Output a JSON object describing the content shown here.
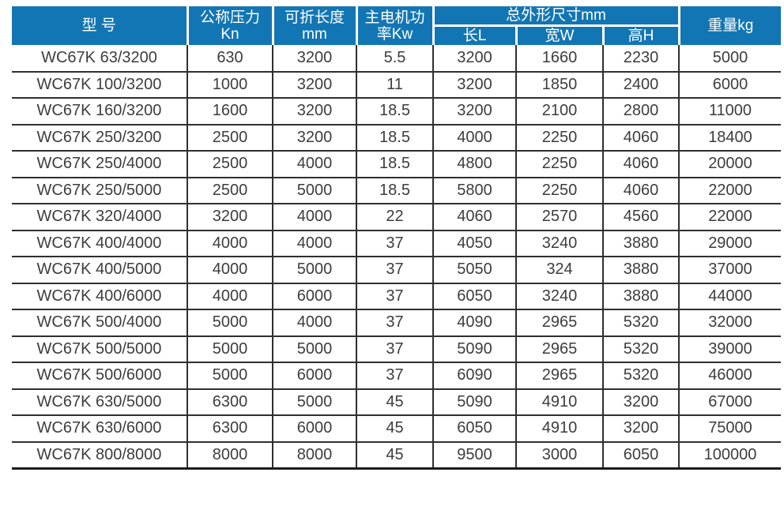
{
  "table": {
    "headers": {
      "model": "型 号",
      "pressure": [
        "公称压力",
        "Kn"
      ],
      "fold_length": [
        "可折长度",
        "mm"
      ],
      "motor_power": [
        "主电机功",
        "率Kw"
      ],
      "overall_dims_group": "总外形尺寸mm",
      "dim_cols": [
        "长L",
        "宽W",
        "高H"
      ],
      "weight": "重量kg"
    },
    "rows": [
      [
        "WC67K 63/3200",
        "630",
        "3200",
        "5.5",
        "3200",
        "1660",
        "2230",
        "5000"
      ],
      [
        "WC67K 100/3200",
        "1000",
        "3200",
        "11",
        "3200",
        "1850",
        "2400",
        "6000"
      ],
      [
        "WC67K 160/3200",
        "1600",
        "3200",
        "18.5",
        "3200",
        "2100",
        "2800",
        "11000"
      ],
      [
        "WC67K 250/3200",
        "2500",
        "3200",
        "18.5",
        "4000",
        "2250",
        "4060",
        "18400"
      ],
      [
        "WC67K 250/4000",
        "2500",
        "4000",
        "18.5",
        "4800",
        "2250",
        "4060",
        "20000"
      ],
      [
        "WC67K 250/5000",
        "2500",
        "5000",
        "18.5",
        "5800",
        "2250",
        "4060",
        "22000"
      ],
      [
        "WC67K 320/4000",
        "3200",
        "4000",
        "22",
        "4060",
        "2570",
        "4560",
        "22000"
      ],
      [
        "WC67K 400/4000",
        "4000",
        "4000",
        "37",
        "4050",
        "3240",
        "3880",
        "29000"
      ],
      [
        "WC67K 400/5000",
        "4000",
        "5000",
        "37",
        "5050",
        "324",
        "3880",
        "37000"
      ],
      [
        "WC67K 400/6000",
        "4000",
        "6000",
        "37",
        "6050",
        "3240",
        "3880",
        "44000"
      ],
      [
        "WC67K 500/4000",
        "5000",
        "4000",
        "37",
        "4090",
        "2965",
        "5320",
        "32000"
      ],
      [
        "WC67K 500/5000",
        "5000",
        "5000",
        "37",
        "5090",
        "2965",
        "5320",
        "39000"
      ],
      [
        "WC67K 500/6000",
        "5000",
        "6000",
        "37",
        "6090",
        "2965",
        "5320",
        "46000"
      ],
      [
        "WC67K 630/5000",
        "6300",
        "5000",
        "45",
        "5090",
        "4910",
        "3200",
        "67000"
      ],
      [
        "WC67K 630/6000",
        "6300",
        "6000",
        "45",
        "6050",
        "4910",
        "3200",
        "75000"
      ],
      [
        "WC67K 800/8000",
        "8000",
        "8000",
        "45",
        "9500",
        "3000",
        "6050",
        "100000"
      ]
    ]
  },
  "colors": {
    "header_bg": "#1376b4",
    "header_text": "#ffffff",
    "body_text": "#3d3d3d",
    "grid_line": "#2f2f2f"
  }
}
